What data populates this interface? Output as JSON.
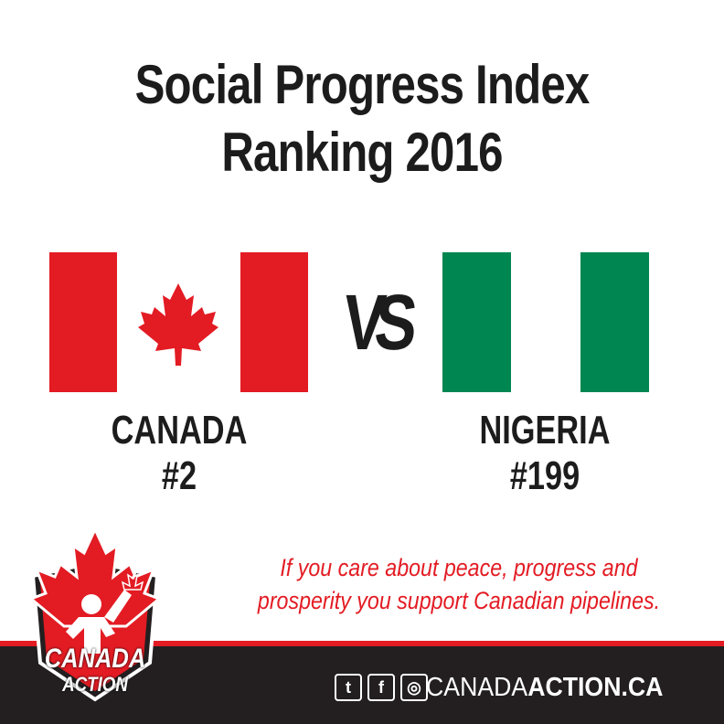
{
  "title": {
    "line1": "Social Progress Index",
    "line2": "Ranking 2016"
  },
  "versus": "VS",
  "countries": [
    {
      "name": "CANADA",
      "rank": "#2"
    },
    {
      "name": "NIGERIA",
      "rank": "#199"
    }
  ],
  "tagline": {
    "line1": "If you care about peace, progress and",
    "line2": "prosperity you support Canadian pipelines."
  },
  "logo": {
    "line1": "CANADA",
    "line2": "ACTION"
  },
  "footer": {
    "social": [
      {
        "icon": "twitter-icon",
        "glyph": "t"
      },
      {
        "icon": "facebook-icon",
        "glyph": "f"
      },
      {
        "icon": "instagram-icon",
        "glyph": "◎"
      }
    ],
    "site_prefix": "CANADA",
    "site_suffix": "ACTION.CA"
  },
  "colors": {
    "canada_red": "#e31b23",
    "nigeria_green": "#008651",
    "text_dark": "#1c1c1c",
    "footer_bg": "#231f20"
  }
}
